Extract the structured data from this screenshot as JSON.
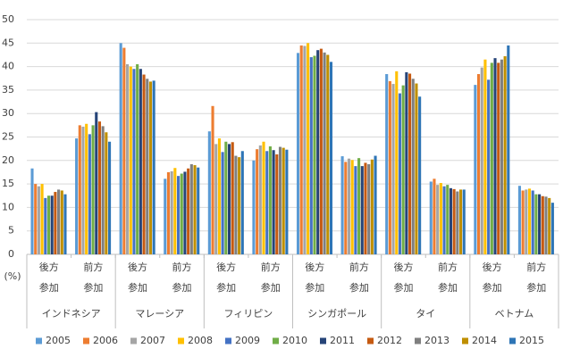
{
  "chart_data": {
    "type": "bar",
    "y_unit": "(%)",
    "ylim": [
      0,
      50
    ],
    "yticks": [
      0,
      5,
      10,
      15,
      20,
      25,
      30,
      35,
      40,
      45,
      50
    ],
    "grid": true,
    "categories": [
      [
        "後方",
        "参加"
      ],
      [
        "前方",
        "参加"
      ],
      [
        "後方",
        "参加"
      ],
      [
        "前方",
        "参加"
      ],
      [
        "後方",
        "参加"
      ],
      [
        "前方",
        "参加"
      ],
      [
        "後方",
        "参加"
      ],
      [
        "前方",
        "参加"
      ],
      [
        "後方",
        "参加"
      ],
      [
        "前方",
        "参加"
      ],
      [
        "後方",
        "参加"
      ],
      [
        "前方",
        "参加"
      ]
    ],
    "groups": [
      "インドネシア",
      "マレーシア",
      "フィリピン",
      "シンガポール",
      "タイ",
      "ベトナム"
    ],
    "legend": "bottom",
    "series": [
      {
        "name": "2005",
        "color": "#5b9bd5",
        "values": [
          18.3,
          24.7,
          45,
          16.1,
          26.2,
          20,
          42.9,
          20.9,
          38.4,
          15.5,
          36.1,
          14.6
        ]
      },
      {
        "name": "2006",
        "color": "#ed7d31",
        "values": [
          15,
          27.5,
          44,
          17.5,
          31.6,
          22.4,
          44.5,
          19.7,
          36.9,
          16.1,
          38.4,
          13.6
        ]
      },
      {
        "name": "2007",
        "color": "#a5a5a5",
        "values": [
          14.5,
          27.2,
          40.5,
          17.7,
          23.5,
          23.2,
          44.4,
          20.4,
          36.3,
          14.8,
          39.8,
          13.8
        ]
      },
      {
        "name": "2008",
        "color": "#ffc000",
        "values": [
          15,
          27.8,
          40,
          18.4,
          24.7,
          24,
          45,
          20.1,
          39,
          15.2,
          41.5,
          14
        ]
      },
      {
        "name": "2009",
        "color": "#4472c4",
        "values": [
          12,
          25.6,
          39.5,
          16.7,
          21.8,
          22,
          42,
          18.8,
          34.3,
          14.5,
          37.2,
          13.6
        ]
      },
      {
        "name": "2010",
        "color": "#70ad47",
        "values": [
          12.5,
          27.5,
          40.5,
          17.2,
          24,
          23,
          42.3,
          20.5,
          36,
          14.8,
          40.8,
          12.8
        ]
      },
      {
        "name": "2011",
        "color": "#264478",
        "values": [
          12.5,
          30.3,
          39.5,
          17.6,
          23.5,
          22.2,
          43.5,
          18.8,
          38.8,
          14.1,
          41.8,
          12.8
        ]
      },
      {
        "name": "2012",
        "color": "#c55a11",
        "values": [
          13.3,
          28.3,
          38.3,
          18.3,
          23.9,
          21.3,
          43.8,
          19.5,
          38.5,
          13.9,
          40.8,
          12.4
        ]
      },
      {
        "name": "2013",
        "color": "#7f7f7f",
        "values": [
          13.8,
          27.3,
          37.4,
          19.2,
          21,
          22.9,
          43,
          19.2,
          37.4,
          13.4,
          41.5,
          12.3
        ]
      },
      {
        "name": "2014",
        "color": "#bf8f00",
        "values": [
          13.6,
          26,
          36.8,
          19,
          20.7,
          22.7,
          42.5,
          20.2,
          36.4,
          13.8,
          42.2,
          12
        ]
      },
      {
        "name": "2015",
        "color": "#2e75b6",
        "values": [
          12.8,
          24,
          37,
          18.5,
          22,
          22.3,
          41,
          21,
          33.6,
          13.8,
          44.5,
          11
        ]
      }
    ]
  }
}
